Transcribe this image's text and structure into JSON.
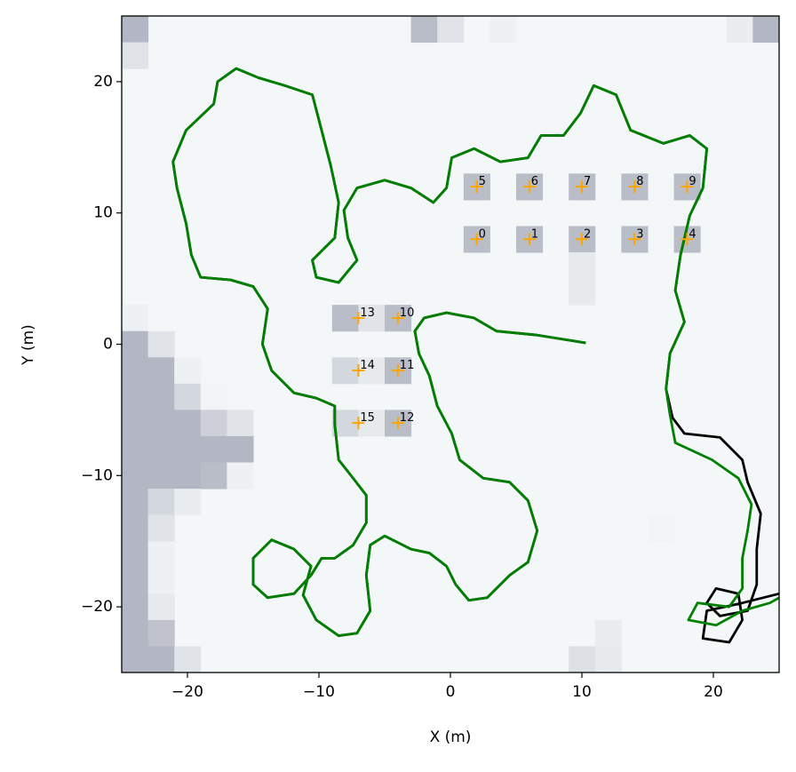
{
  "chart_data": {
    "type": "line",
    "xlabel": "X (m)",
    "ylabel": "Y (m)",
    "xlim": [
      -25,
      25
    ],
    "ylim": [
      -25,
      25
    ],
    "xticks": [
      {
        "value": -20,
        "label": "−20"
      },
      {
        "value": -10,
        "label": "−10"
      },
      0,
      10,
      20
    ],
    "yticks": [
      {
        "value": -20,
        "label": "−20"
      },
      {
        "value": -10,
        "label": "−10"
      },
      0,
      10,
      20
    ],
    "grid_colors": [
      "#f3f7f8",
      "#b3b6c3"
    ],
    "grid_cells": [
      [
        -25,
        23,
        1
      ],
      [
        -25,
        21,
        0.3
      ],
      [
        -3,
        23,
        0.9
      ],
      [
        -1,
        23,
        0.3
      ],
      [
        3,
        23,
        0.1
      ],
      [
        21,
        23,
        0.15
      ],
      [
        23,
        23,
        1
      ],
      [
        -25,
        1,
        0.1
      ],
      [
        -25,
        -1,
        1
      ],
      [
        -23,
        -1,
        0.3
      ],
      [
        -25,
        -3,
        1
      ],
      [
        -23,
        -3,
        1
      ],
      [
        -21,
        -3,
        0.1
      ],
      [
        -25,
        -5,
        1
      ],
      [
        -23,
        -5,
        1
      ],
      [
        -21,
        -5,
        0.5
      ],
      [
        -19,
        -5,
        0.05
      ],
      [
        -25,
        -7,
        1
      ],
      [
        -23,
        -7,
        1
      ],
      [
        -21,
        -7,
        1
      ],
      [
        -19,
        -7,
        0.6
      ],
      [
        -17,
        -7,
        0.3
      ],
      [
        -25,
        -9,
        1
      ],
      [
        -23,
        -9,
        1
      ],
      [
        -21,
        -9,
        1
      ],
      [
        -19,
        -9,
        1
      ],
      [
        -17,
        -9,
        1
      ],
      [
        -25,
        -11,
        1
      ],
      [
        -23,
        -11,
        1
      ],
      [
        -21,
        -11,
        1
      ],
      [
        -19,
        -11,
        0.9
      ],
      [
        -17,
        -11,
        0.1
      ],
      [
        -25,
        -13,
        1
      ],
      [
        -23,
        -13,
        0.5
      ],
      [
        -21,
        -13,
        0.15
      ],
      [
        -25,
        -15,
        1
      ],
      [
        -23,
        -15,
        0.3
      ],
      [
        -25,
        -17,
        1
      ],
      [
        -23,
        -17,
        0.1
      ],
      [
        -25,
        -19,
        1
      ],
      [
        -23,
        -19,
        0.1
      ],
      [
        -25,
        -21,
        1
      ],
      [
        -23,
        -21,
        0.2
      ],
      [
        -25,
        -23,
        1
      ],
      [
        -23,
        -23,
        0.8
      ],
      [
        -25,
        -25,
        1
      ],
      [
        -23,
        -25,
        1
      ],
      [
        -21,
        -25,
        0.3
      ],
      [
        9,
        -25,
        0.35
      ],
      [
        11,
        -25,
        0.2
      ],
      [
        11,
        -23,
        0.15
      ],
      [
        15,
        -15,
        0.05
      ],
      [
        1,
        7,
        0.9
      ],
      [
        5,
        7,
        0.9
      ],
      [
        9,
        7,
        0.9
      ],
      [
        13,
        7,
        0.9
      ],
      [
        17,
        7,
        0.9
      ],
      [
        1,
        11,
        0.9
      ],
      [
        5,
        11,
        0.9
      ],
      [
        9,
        11,
        0.9
      ],
      [
        13,
        11,
        0.9
      ],
      [
        17,
        11,
        0.9
      ],
      [
        9,
        5,
        0.2
      ],
      [
        9,
        3,
        0.2
      ],
      [
        -9,
        1,
        0.9
      ],
      [
        -7,
        1,
        0.3
      ],
      [
        -5,
        1,
        0.9
      ],
      [
        -9,
        -3,
        0.5
      ],
      [
        -7,
        -3,
        0.2
      ],
      [
        -5,
        -3,
        0.9
      ],
      [
        -9,
        -7,
        0.5
      ],
      [
        -7,
        -7,
        0.2
      ],
      [
        -5,
        -7,
        0.9
      ]
    ],
    "series": [
      {
        "color": "#000000",
        "x": [
          10.3,
          6.6,
          3.5,
          1.8,
          -0.3,
          -2,
          -2.7,
          -2.4,
          -1.6,
          -1,
          0.1,
          0.7,
          2.5,
          4.5,
          5.9,
          6.6,
          5.9,
          4.5,
          2.8,
          1.4,
          0.4,
          -0.3,
          -1.6,
          -3,
          -5,
          -6.1,
          -6.4,
          -6.1,
          -7.1,
          -8.5,
          -10.2,
          -11.2,
          -10.6,
          -11.9,
          -13.6,
          -15,
          -15,
          -13.9,
          -11.9,
          -10.6,
          -9.8,
          -8.8,
          -7.4,
          -6.4,
          -6.4,
          -7.4,
          -8.5,
          -8.8,
          -8.8,
          -10.2,
          -11.9,
          -13.6,
          -14.3,
          -13.9,
          -15,
          -16.7,
          -19,
          -19.7,
          -20.1,
          -20.8,
          -21.1,
          -20.1,
          -18,
          -17.7,
          -16.3,
          -14.6,
          -12.6,
          -10.5,
          -9.8,
          -9.1,
          -8.5,
          -8.8,
          -10.5,
          -10.2,
          -8.5,
          -7.1,
          -7.8,
          -8.1,
          -7.1,
          -5,
          -3,
          -1.3,
          -0.3,
          0.1,
          1.8,
          3.8,
          5.9,
          6.9,
          8.6,
          9.9,
          10.9,
          12.6,
          13.7,
          16.2,
          18.2,
          19.5,
          19.2,
          18.2,
          17.5,
          17.1,
          17.8,
          16.7,
          16.4,
          16.9,
          17.8,
          20.5,
          22.2,
          22.6,
          23.6,
          23.3,
          23.3,
          22.6,
          20.5,
          19.5,
          20.2,
          21.9,
          22.2,
          21.2,
          19.2,
          19.5,
          22.2,
          25
        ],
        "y": [
          0.1,
          0.7,
          1,
          2,
          2.4,
          2,
          1,
          -0.7,
          -2.4,
          -4.7,
          -6.8,
          -8.8,
          -10.2,
          -10.5,
          -11.9,
          -14.2,
          -16.6,
          -17.6,
          -19.3,
          -19.5,
          -18.3,
          -16.9,
          -15.9,
          -15.6,
          -14.6,
          -15.3,
          -17.6,
          -20.3,
          -22,
          -22.2,
          -21,
          -19.1,
          -16.9,
          -15.6,
          -14.9,
          -16.3,
          -18.3,
          -19.3,
          -19,
          -17.6,
          -16.3,
          -16.3,
          -15.3,
          -13.6,
          -11.5,
          -10.2,
          -8.8,
          -6.1,
          -4.7,
          -4.1,
          -3.7,
          -2,
          0,
          2.7,
          4.4,
          4.9,
          5.1,
          6.8,
          9.2,
          11.9,
          13.9,
          16.3,
          18.3,
          20,
          21,
          20.3,
          19.7,
          19,
          16.3,
          13.6,
          10.8,
          8.1,
          6.4,
          5.1,
          4.7,
          6.4,
          8.1,
          10.2,
          11.9,
          12.5,
          11.9,
          10.8,
          11.9,
          14.2,
          14.9,
          13.9,
          14.2,
          15.9,
          15.9,
          17.6,
          19.7,
          19,
          16.3,
          15.3,
          15.9,
          14.9,
          11.9,
          9.8,
          6.8,
          4.1,
          1.7,
          -0.7,
          -3.4,
          -5.6,
          -6.8,
          -7.1,
          -8.8,
          -10.5,
          -12.9,
          -15.6,
          -18.3,
          -20.3,
          -20.7,
          -19.7,
          -18.6,
          -19,
          -21,
          -22.7,
          -22.4,
          -20.3,
          -19.7,
          -19
        ]
      },
      {
        "color": "#008000",
        "x": [
          10.3,
          6.6,
          3.5,
          1.8,
          -0.3,
          -2,
          -2.7,
          -2.4,
          -1.6,
          -1,
          0.1,
          0.7,
          2.5,
          4.5,
          5.9,
          6.6,
          5.9,
          4.5,
          2.8,
          1.4,
          0.4,
          -0.3,
          -1.6,
          -3,
          -5,
          -6.1,
          -6.4,
          -6.1,
          -7.1,
          -8.5,
          -10.2,
          -11.2,
          -10.6,
          -11.9,
          -13.6,
          -15,
          -15,
          -13.9,
          -11.9,
          -10.6,
          -9.8,
          -8.8,
          -7.4,
          -6.4,
          -6.4,
          -7.4,
          -8.5,
          -8.8,
          -8.8,
          -10.2,
          -11.9,
          -13.6,
          -14.3,
          -13.9,
          -15,
          -16.7,
          -19,
          -19.7,
          -20.1,
          -20.8,
          -21.1,
          -20.1,
          -18,
          -17.7,
          -16.3,
          -14.6,
          -12.6,
          -10.5,
          -9.8,
          -9.1,
          -8.5,
          -8.8,
          -10.5,
          -10.2,
          -8.5,
          -7.1,
          -7.8,
          -8.1,
          -7.1,
          -5,
          -3,
          -1.3,
          -0.3,
          0.1,
          1.8,
          3.8,
          5.9,
          6.9,
          8.6,
          9.9,
          10.9,
          12.6,
          13.7,
          16.2,
          18.2,
          19.5,
          19.2,
          18.2,
          17.5,
          17.1,
          17.8,
          16.7,
          16.4,
          16.7,
          17.1,
          19.9,
          21.9,
          22.9,
          22.6,
          22.2,
          22.2,
          21.2,
          18.8,
          18.1,
          20.2,
          22.2,
          24.3,
          25
        ],
        "y": [
          0.1,
          0.7,
          1,
          2,
          2.4,
          2,
          1,
          -0.7,
          -2.4,
          -4.7,
          -6.8,
          -8.8,
          -10.2,
          -10.5,
          -11.9,
          -14.2,
          -16.6,
          -17.6,
          -19.3,
          -19.5,
          -18.3,
          -16.9,
          -15.9,
          -15.6,
          -14.6,
          -15.3,
          -17.6,
          -20.3,
          -22,
          -22.2,
          -21,
          -19.1,
          -16.9,
          -15.6,
          -14.9,
          -16.3,
          -18.3,
          -19.3,
          -19,
          -17.6,
          -16.3,
          -16.3,
          -15.3,
          -13.6,
          -11.5,
          -10.2,
          -8.8,
          -6.1,
          -4.7,
          -4.1,
          -3.7,
          -2,
          0,
          2.7,
          4.4,
          4.9,
          5.1,
          6.8,
          9.2,
          11.9,
          13.9,
          16.3,
          18.3,
          20,
          21,
          20.3,
          19.7,
          19,
          16.3,
          13.6,
          10.8,
          8.1,
          6.4,
          5.1,
          4.7,
          6.4,
          8.1,
          10.2,
          11.9,
          12.5,
          11.9,
          10.8,
          11.9,
          14.2,
          14.9,
          13.9,
          14.2,
          15.9,
          15.9,
          17.6,
          19.7,
          19,
          16.3,
          15.3,
          15.9,
          14.9,
          11.9,
          9.8,
          6.8,
          4.1,
          1.7,
          -0.7,
          -3.4,
          -5.4,
          -7.5,
          -8.8,
          -10.2,
          -12.2,
          -14.2,
          -16.3,
          -18.6,
          -20,
          -19.7,
          -21,
          -21.4,
          -20.3,
          -19.7,
          -19.3
        ]
      }
    ],
    "landmarks": {
      "color": "#ffa500",
      "labels": [
        "0",
        "1",
        "2",
        "3",
        "4",
        "5",
        "6",
        "7",
        "8",
        "9",
        "10",
        "11",
        "12",
        "13",
        "14",
        "15"
      ],
      "x": [
        2,
        6,
        10,
        14,
        18,
        2,
        6,
        10,
        14,
        18,
        -4,
        -4,
        -4,
        -7,
        -7,
        -7
      ],
      "y": [
        8,
        8,
        8,
        8,
        8,
        12,
        12,
        12,
        12,
        12,
        2,
        -2,
        -6,
        2,
        -2,
        -6
      ]
    }
  }
}
